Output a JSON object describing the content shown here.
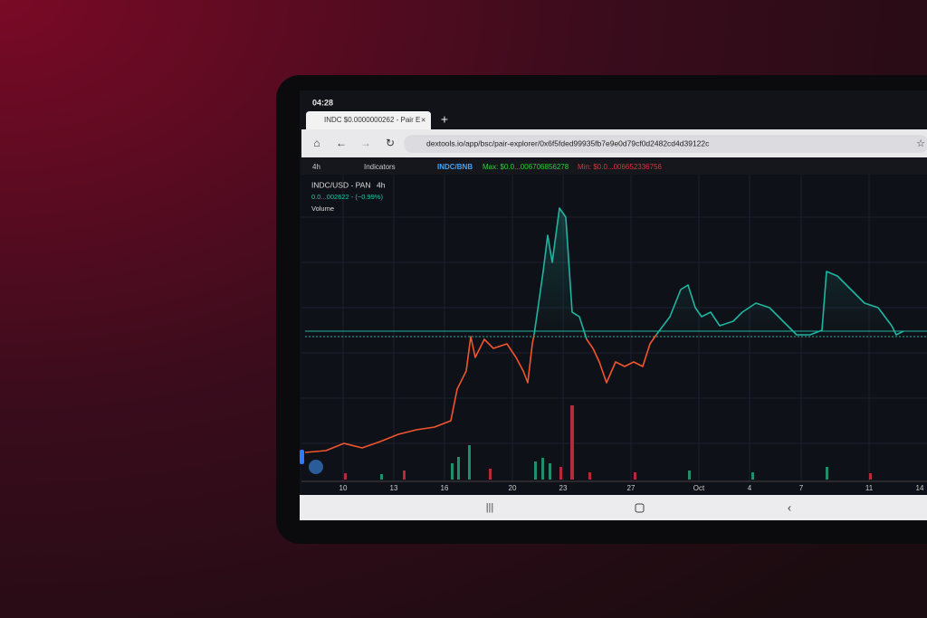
{
  "status": {
    "time": "04:28"
  },
  "tab": {
    "title": "INDC $0.0000000262 - Pair E"
  },
  "address": {
    "url": "dextools.io/app/bsc/pair-explorer/0x6f5fded99935fb7e9e0d79cf0d2482cd4d39122c"
  },
  "toolbar": {
    "interval": "4h",
    "indicators": "Indicators",
    "pair": "INDC/BNB",
    "max": "Max: $0.0...006706856278",
    "min": "Min: $0.0...006652336756"
  },
  "chart": {
    "symbol": "INDC/USD - PAN",
    "interval": "4h",
    "price": "0.0...002622 - (−0.99%)",
    "volume": "Volume",
    "x_labels": [
      "10",
      "13",
      "16",
      "20",
      "23",
      "27",
      "Oct",
      "4",
      "7",
      "11",
      "14"
    ]
  }
}
